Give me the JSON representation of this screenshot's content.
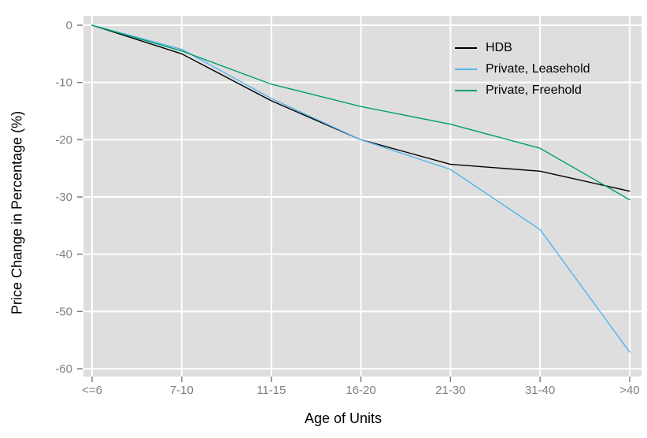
{
  "chart_data": {
    "type": "line",
    "title": "",
    "xlabel": "Age of Units",
    "ylabel": "Price Change in Percentage (%)",
    "categories": [
      "<=6",
      "7-10",
      "11-15",
      "16-20",
      "21-30",
      "31-40",
      ">40"
    ],
    "series": [
      {
        "name": "HDB",
        "color": "#000000",
        "values": [
          0,
          -5.0,
          -13.2,
          -20.0,
          -24.3,
          -25.5,
          -29.0
        ]
      },
      {
        "name": "Private, Leasehold",
        "color": "#56B4E9",
        "values": [
          0,
          -4.2,
          -12.8,
          -20.0,
          -25.2,
          -35.7,
          -57.1
        ]
      },
      {
        "name": "Private, Freehold",
        "color": "#009E73",
        "values": [
          0,
          -4.5,
          -10.3,
          -14.2,
          -17.3,
          -21.5,
          -30.5
        ]
      }
    ],
    "yticks": [
      0,
      -10,
      -20,
      -30,
      -40,
      -50,
      -60
    ],
    "ylim": [
      -60,
      0
    ],
    "grid": true,
    "legend_position": "inside-top-right",
    "style": {
      "panel_bg": "#DEDEDE",
      "grid_color": "#FFFFFF",
      "tick_label_color": "#7F7F7F",
      "tick_mark_color": "#7F7F7F",
      "axis_title_color": "#000000"
    }
  }
}
